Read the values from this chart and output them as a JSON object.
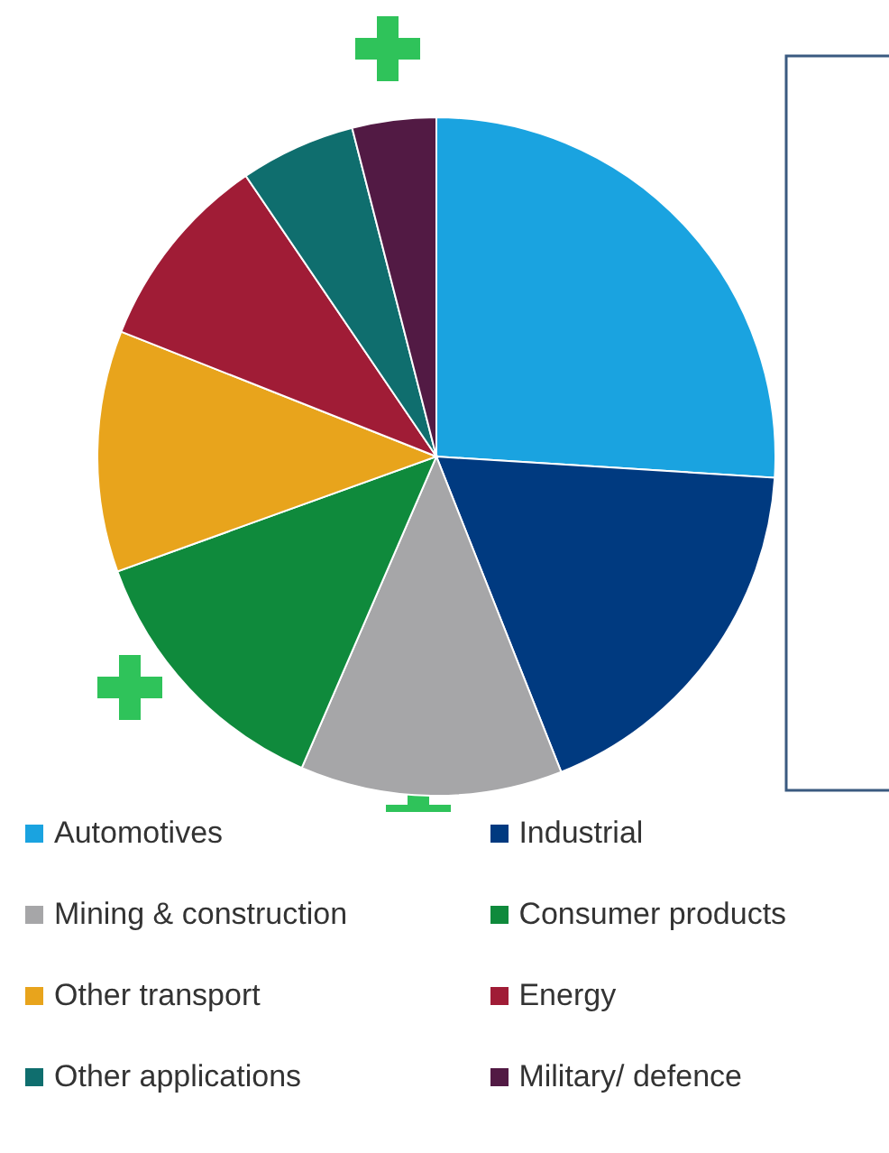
{
  "chart_data": {
    "type": "pie",
    "categories": [
      "Automotives",
      "Industrial",
      "Mining & construction",
      "Consumer products",
      "Other transport",
      "Energy",
      "Other applications",
      "Military/ defence"
    ],
    "values": [
      26,
      18,
      12.5,
      13,
      11.5,
      9.5,
      5.5,
      4
    ],
    "colors": [
      "#1aa3e0",
      "#003a80",
      "#a6a6a8",
      "#0f8a3c",
      "#e8a41c",
      "#a01c36",
      "#0f6e6e",
      "#521a44"
    ],
    "legend": "bottom"
  }
}
